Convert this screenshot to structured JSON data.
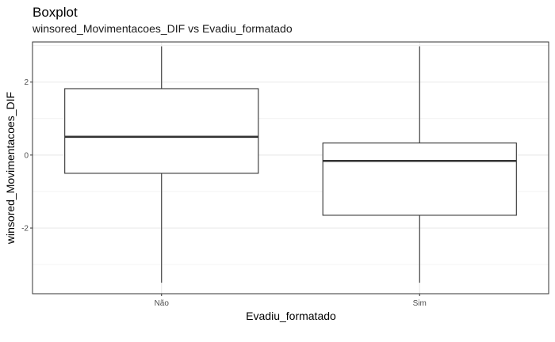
{
  "chart_data": {
    "type": "boxplot",
    "title": "Boxplot",
    "subtitle": "winsored_Movimentacoes_DIF vs Evadiu_formatado",
    "xlabel": "Evadiu_formatado",
    "ylabel": "winsored_Movimentacoes_DIF",
    "categories": [
      "Não",
      "Sim"
    ],
    "yticks": [
      -2,
      0,
      2
    ],
    "ytick_labels": [
      "-2",
      "0",
      "2"
    ],
    "ylim": [
      -3.8,
      3.1
    ],
    "grid": true,
    "boxes": [
      {
        "category": "Não",
        "min": -3.5,
        "q1": -0.5,
        "median": 0.5,
        "q3": 1.82,
        "max": 2.98
      },
      {
        "category": "Sim",
        "min": -3.5,
        "q1": -1.65,
        "median": -0.16,
        "q3": 0.33,
        "max": 2.98
      }
    ],
    "colors": {
      "box_fill": "#ffffff",
      "box_stroke": "#333333",
      "grid": "#ebebeb",
      "panel_border": "#333333"
    }
  }
}
